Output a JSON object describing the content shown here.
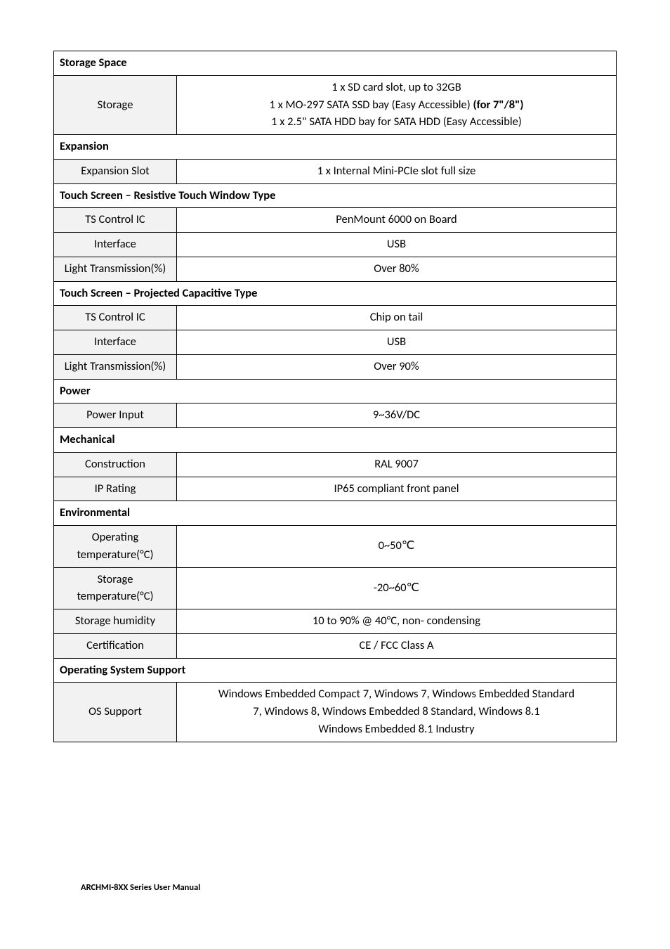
{
  "footer": "ARCHMI-8XX Series User Manual",
  "sections": [
    {
      "header": "Storage Space",
      "rows": [
        {
          "label": "Storage",
          "lines": [
            {
              "plain": "1 x SD card slot, up to 32GB"
            },
            {
              "prefix": "1 x MO-297 SATA SSD bay (Easy Accessible) ",
              "bold": "(for 7\"/8\")",
              "suffix": ""
            },
            {
              "plain": "1 x 2.5\" SATA HDD bay for SATA HDD (Easy Accessible)"
            }
          ]
        }
      ]
    },
    {
      "header": "Expansion",
      "rows": [
        {
          "label": "Expansion Slot",
          "value": "1 x Internal Mini-PCIe slot full size"
        }
      ]
    },
    {
      "header": "Touch Screen – Resistive Touch Window Type",
      "rows": [
        {
          "label": "TS Control IC",
          "value": "PenMount 6000 on Board"
        },
        {
          "label": "Interface",
          "value": "USB"
        },
        {
          "label": "Light Transmission(%)",
          "value": "Over 80%"
        }
      ]
    },
    {
      "header": "Touch Screen – Projected Capacitive Type",
      "rows": [
        {
          "label": "TS Control IC",
          "value": "Chip on tail"
        },
        {
          "label": "Interface",
          "value": "USB"
        },
        {
          "label": "Light Transmission(%)",
          "value": "Over 90%"
        }
      ]
    },
    {
      "header": "Power",
      "rows": [
        {
          "label": "Power Input",
          "value": "9~36V/DC"
        }
      ]
    },
    {
      "header": "Mechanical",
      "rows": [
        {
          "label": "Construction",
          "value": "RAL 9007"
        },
        {
          "label": "IP Rating",
          "value": "IP65 compliant front panel"
        }
      ]
    },
    {
      "header": "Environmental",
      "rows": [
        {
          "label": "Operating temperature(°C)",
          "value": "0~50℃"
        },
        {
          "label": "Storage temperature(°C)",
          "value": "-20~60℃"
        },
        {
          "label": "Storage humidity",
          "value": "10 to 90% @ 40°C, non- condensing"
        },
        {
          "label": "Certification",
          "value": "CE / FCC Class A"
        }
      ]
    },
    {
      "header": "Operating System Support",
      "rows": [
        {
          "label": "OS Support",
          "lines": [
            {
              "plain": "Windows Embedded Compact 7, Windows 7, Windows Embedded Standard"
            },
            {
              "plain": "7, Windows 8, Windows Embedded 8 Standard, Windows 8.1"
            },
            {
              "plain": "Windows Embedded 8.1 Industry"
            }
          ]
        }
      ]
    }
  ]
}
